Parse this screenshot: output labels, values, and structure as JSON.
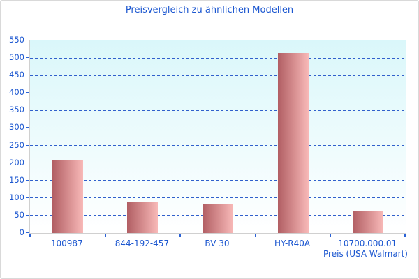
{
  "window": {
    "background": "#ffffff",
    "border_color": "#d9d9d9"
  },
  "chart_data": {
    "type": "bar",
    "title": "Preisvergleich zu ähnlichen Modellen",
    "xlabel": "Preis (USA Walmart)",
    "ylabel": "",
    "categories": [
      "100987",
      "844-192-457",
      "BV 30",
      "HY-R40A",
      "10700.000.01"
    ],
    "values": [
      209,
      88,
      82,
      514,
      64
    ],
    "ylim": [
      0,
      550
    ],
    "ytick_step": 50,
    "ytick_labels": [
      "0",
      "50",
      "100",
      "150",
      "200",
      "250",
      "300",
      "350",
      "400",
      "450",
      "500",
      "550"
    ],
    "grid": "horizontal-dashed",
    "legend": "none",
    "colors": {
      "title_text": "#1c57d0",
      "axis_text": "#1c57d0",
      "gridline": "#3060cc",
      "tick": "#2a62d6",
      "plot_bg_top": "#daf7fa",
      "plot_bg_bottom": "#ffffff",
      "plot_border": "#d0d0d0",
      "bar_gradient_left": "#b15e63",
      "bar_gradient_right": "#f8b9b8"
    }
  }
}
